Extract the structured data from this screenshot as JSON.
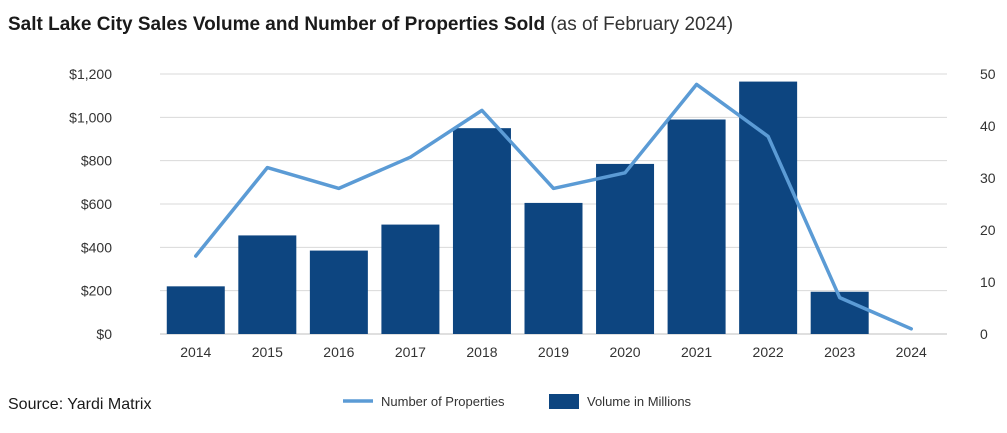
{
  "title": "Salt Lake City Sales Volume and Number of Properties Sold",
  "subtitle": "(as of February 2024)",
  "source": "Source: Yardi Matrix",
  "colors": {
    "bar": "#0d4580",
    "line": "#5b9bd5",
    "grid": "#d9d9d9"
  },
  "chart_data": {
    "type": "bar",
    "categories": [
      "2014",
      "2015",
      "2016",
      "2017",
      "2018",
      "2019",
      "2020",
      "2021",
      "2022",
      "2023",
      "2024"
    ],
    "series": [
      {
        "name": "Volume in Millions",
        "type": "bar",
        "axis": "left",
        "values": [
          220,
          455,
          385,
          505,
          950,
          605,
          785,
          990,
          1165,
          195,
          null
        ]
      },
      {
        "name": "Number of Properties",
        "type": "line",
        "axis": "right",
        "values": [
          15,
          32,
          28,
          34,
          43,
          28,
          31,
          48,
          38,
          7,
          1
        ]
      }
    ],
    "y_left": {
      "ylim": [
        0,
        1200
      ],
      "ticks": [
        "$0",
        "$200",
        "$400",
        "$600",
        "$800",
        "$1,000",
        "$1,200"
      ]
    },
    "y_right": {
      "ylim": [
        0,
        50
      ],
      "ticks": [
        "0",
        "10",
        "20",
        "30",
        "40",
        "50"
      ]
    },
    "grid": true,
    "legend_position": "bottom"
  }
}
